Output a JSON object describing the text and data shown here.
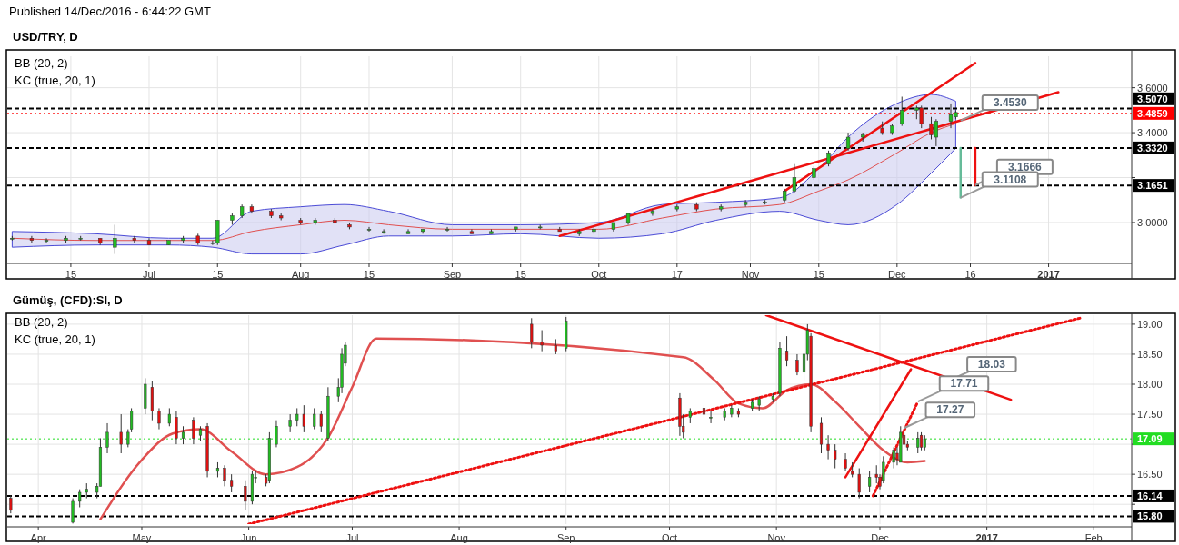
{
  "chart_data": [
    {
      "type": "candlestick",
      "title": "USD/TRY, D",
      "subtitle": "Published 14/Dec/2016 - 6:44:22 GMT",
      "annotations": [
        "BB (20, 2)",
        "KC (true, 20, 1)",
        {
          "text": "3.4530",
          "x": "2016-12-14",
          "y": 3.453
        },
        {
          "text": "3.1666",
          "x": "2016-12-17",
          "y": 3.1666
        },
        {
          "text": "3.1108",
          "x": "2016-12-14",
          "y": 3.1108
        }
      ],
      "x": [
        "2016-06-03",
        "2016-06-07",
        "2016-06-10",
        "2016-06-14",
        "2016-06-17",
        "2016-06-21",
        "2016-06-24",
        "2016-06-28",
        "2016-07-01",
        "2016-07-05",
        "2016-07-08",
        "2016-07-11",
        "2016-07-14",
        "2016-07-15",
        "2016-07-18",
        "2016-07-20",
        "2016-07-22",
        "2016-07-26",
        "2016-07-28",
        "2016-08-01",
        "2016-08-04",
        "2016-08-08",
        "2016-08-11",
        "2016-08-15",
        "2016-08-18",
        "2016-08-23",
        "2016-08-26",
        "2016-08-31",
        "2016-09-05",
        "2016-09-09",
        "2016-09-14",
        "2016-09-19",
        "2016-09-23",
        "2016-09-27",
        "2016-09-30",
        "2016-10-04",
        "2016-10-07",
        "2016-10-12",
        "2016-10-17",
        "2016-10-21",
        "2016-10-26",
        "2016-10-31",
        "2016-11-04",
        "2016-11-08",
        "2016-11-10",
        "2016-11-14",
        "2016-11-17",
        "2016-11-21",
        "2016-11-24",
        "2016-11-28",
        "2016-11-30",
        "2016-12-02",
        "2016-12-05",
        "2016-12-06",
        "2016-12-08",
        "2016-12-09",
        "2016-12-12",
        "2016-12-13"
      ],
      "ohlc": [
        [
          2.93,
          2.94,
          2.92,
          2.93
        ],
        [
          2.93,
          2.94,
          2.91,
          2.92
        ],
        [
          2.92,
          2.93,
          2.91,
          2.92
        ],
        [
          2.92,
          2.94,
          2.91,
          2.93
        ],
        [
          2.93,
          2.94,
          2.92,
          2.93
        ],
        [
          2.93,
          2.93,
          2.9,
          2.91
        ],
        [
          2.89,
          2.99,
          2.86,
          2.93
        ],
        [
          2.93,
          2.94,
          2.91,
          2.92
        ],
        [
          2.92,
          2.93,
          2.9,
          2.9
        ],
        [
          2.9,
          2.92,
          2.9,
          2.92
        ],
        [
          2.92,
          2.94,
          2.91,
          2.93
        ],
        [
          2.94,
          2.95,
          2.9,
          2.91
        ],
        [
          2.91,
          2.92,
          2.9,
          2.91
        ],
        [
          2.91,
          3.01,
          2.9,
          3.01
        ],
        [
          3.01,
          3.04,
          2.99,
          3.03
        ],
        [
          3.03,
          3.08,
          3.02,
          3.07
        ],
        [
          3.07,
          3.08,
          3.04,
          3.05
        ],
        [
          3.05,
          3.06,
          3.02,
          3.03
        ],
        [
          3.03,
          3.04,
          3.01,
          3.02
        ],
        [
          3.01,
          3.02,
          2.99,
          3.0
        ],
        [
          3.0,
          3.02,
          2.99,
          3.01
        ],
        [
          3.01,
          3.02,
          3.0,
          3.0
        ],
        [
          2.99,
          3.0,
          2.97,
          2.98
        ],
        [
          2.97,
          2.98,
          2.96,
          2.97
        ],
        [
          2.96,
          2.97,
          2.95,
          2.96
        ],
        [
          2.95,
          2.97,
          2.95,
          2.96
        ],
        [
          2.96,
          2.97,
          2.95,
          2.97
        ],
        [
          2.97,
          2.98,
          2.96,
          2.97
        ],
        [
          2.96,
          2.97,
          2.95,
          2.95
        ],
        [
          2.95,
          2.97,
          2.95,
          2.96
        ],
        [
          2.97,
          2.98,
          2.96,
          2.98
        ],
        [
          2.98,
          2.99,
          2.97,
          2.98
        ],
        [
          2.97,
          2.98,
          2.96,
          2.96
        ],
        [
          2.95,
          2.97,
          2.94,
          2.96
        ],
        [
          2.96,
          2.98,
          2.95,
          2.97
        ],
        [
          2.97,
          3.0,
          2.96,
          3.0
        ],
        [
          3.0,
          3.04,
          2.99,
          3.04
        ],
        [
          3.04,
          3.06,
          3.03,
          3.05
        ],
        [
          3.06,
          3.08,
          3.05,
          3.07
        ],
        [
          3.08,
          3.09,
          3.05,
          3.06
        ],
        [
          3.06,
          3.08,
          3.05,
          3.07
        ],
        [
          3.08,
          3.1,
          3.07,
          3.09
        ],
        [
          3.09,
          3.1,
          3.08,
          3.09
        ],
        [
          3.1,
          3.15,
          3.09,
          3.14
        ],
        [
          3.14,
          3.26,
          3.13,
          3.2
        ],
        [
          3.2,
          3.25,
          3.19,
          3.24
        ],
        [
          3.26,
          3.32,
          3.25,
          3.31
        ],
        [
          3.33,
          3.4,
          3.32,
          3.38
        ],
        [
          3.38,
          3.4,
          3.36,
          3.39
        ],
        [
          3.42,
          3.45,
          3.39,
          3.4
        ],
        [
          3.4,
          3.44,
          3.39,
          3.43
        ],
        [
          3.44,
          3.56,
          3.43,
          3.5
        ],
        [
          3.5,
          3.52,
          3.46,
          3.51
        ],
        [
          3.51,
          3.52,
          3.42,
          3.44
        ],
        [
          3.44,
          3.47,
          3.37,
          3.39
        ],
        [
          3.38,
          3.46,
          3.34,
          3.45
        ],
        [
          3.45,
          3.53,
          3.42,
          3.48
        ],
        [
          3.47,
          3.5,
          3.46,
          3.49
        ]
      ],
      "series": [
        {
          "type": "line",
          "color": "#e05050",
          "x": [
            "2016-06-03",
            "2016-06-20",
            "2016-07-05",
            "2016-07-14",
            "2016-07-22",
            "2016-08-01",
            "2016-08-10",
            "2016-08-19",
            "2016-09-01",
            "2016-09-15",
            "2016-10-01",
            "2016-10-14",
            "2016-10-25",
            "2016-11-07",
            "2016-11-15",
            "2016-11-21",
            "2016-12-01",
            "2016-12-08",
            "2016-12-13"
          ],
          "values": [
            2.93,
            2.92,
            2.92,
            2.92,
            2.96,
            2.99,
            3.01,
            2.99,
            2.97,
            2.97,
            2.97,
            3.02,
            3.06,
            3.08,
            3.14,
            3.19,
            3.31,
            3.4,
            3.44
          ],
          "lower": [
            2.89,
            2.9,
            2.9,
            2.89,
            2.86,
            2.86,
            2.9,
            2.94,
            2.94,
            2.95,
            2.93,
            2.95,
            3.01,
            3.05,
            3.01,
            2.99,
            3.08,
            3.22,
            3.33
          ],
          "upper": [
            2.96,
            2.95,
            2.93,
            2.93,
            3.05,
            3.07,
            3.08,
            3.05,
            2.99,
            2.99,
            3.0,
            3.08,
            3.09,
            3.11,
            3.24,
            3.38,
            3.53,
            3.57,
            3.54
          ]
        },
        {
          "type": "line",
          "color": "#ee1111",
          "x": [
            "2016-09-23",
            "2017-01-03"
          ],
          "values": [
            2.94,
            3.58
          ]
        },
        {
          "type": "line",
          "color": "#ee1111",
          "x": [
            "2016-11-08",
            "2016-12-17"
          ],
          "values": [
            3.14,
            3.71
          ]
        },
        {
          "type": "line",
          "color": "#ee1111",
          "x": [
            "2016-12-17",
            "2016-12-17"
          ],
          "values": [
            3.332,
            3.1666
          ]
        },
        {
          "type": "line",
          "color": "#66bb99",
          "x": [
            "2016-12-14",
            "2016-12-14"
          ],
          "values": [
            3.332,
            3.1108
          ]
        }
      ],
      "xlim": [
        "2016-06-02",
        "2017-01-18"
      ],
      "xticks": [
        {
          "value": "2016-06-15",
          "label": "15"
        },
        {
          "value": "2016-07-01",
          "label": "Jul"
        },
        {
          "value": "2016-07-15",
          "label": "15"
        },
        {
          "value": "2016-08-01",
          "label": "Aug"
        },
        {
          "value": "2016-08-15",
          "label": "15"
        },
        {
          "value": "2016-09-01",
          "label": "Sep"
        },
        {
          "value": "2016-09-15",
          "label": "15"
        },
        {
          "value": "2016-10-01",
          "label": "Oct"
        },
        {
          "value": "2016-10-17",
          "label": "17"
        },
        {
          "value": "2016-11-01",
          "label": "Nov"
        },
        {
          "value": "2016-11-15",
          "label": "15"
        },
        {
          "value": "2016-12-01",
          "label": "Dec"
        },
        {
          "value": "2016-12-16",
          "label": "16"
        },
        {
          "value": "2017-01-01",
          "label": "2017"
        }
      ],
      "ylim": [
        2.83,
        3.74
      ],
      "yticks": [
        {
          "value": 3,
          "label": "3.0000"
        },
        {
          "value": 3.2,
          "label": null
        },
        {
          "value": 3.4,
          "label": "3.4000"
        },
        {
          "value": 3.6,
          "label": "3.6000"
        }
      ],
      "grid": true,
      "ref_lines": [
        {
          "axis": "y",
          "value": 3.507,
          "label": "3.5070",
          "color": "#000000",
          "line_style": "dashed"
        },
        {
          "axis": "y",
          "value": 3.4859,
          "label": "3.4859",
          "color": "#ff0000",
          "line_style": "dotted"
        },
        {
          "axis": "y",
          "value": 3.332,
          "label": "3.3320",
          "color": "#000000",
          "line_style": "dashed"
        },
        {
          "axis": "y",
          "value": 3.1651,
          "label": "3.1651",
          "color": "#000000",
          "line_style": "dashed"
        }
      ]
    },
    {
      "type": "candlestick",
      "title": "Gümüş, (CFD):SI, D",
      "annotations": [
        "BB (20, 2)",
        "KC (true, 20, 1)",
        {
          "text": "18.03",
          "x": "2016-12-20",
          "y": 18.03
        },
        {
          "text": "17.71",
          "x": "2016-12-12",
          "y": 17.71
        },
        {
          "text": "17.27",
          "x": "2016-12-08",
          "y": 17.27
        }
      ],
      "x": [
        "2016-03-24",
        "2016-04-11",
        "2016-04-13",
        "2016-04-15",
        "2016-04-18",
        "2016-04-19",
        "2016-04-21",
        "2016-04-25",
        "2016-04-27",
        "2016-04-28",
        "2016-05-02",
        "2016-05-04",
        "2016-05-06",
        "2016-05-09",
        "2016-05-11",
        "2016-05-13",
        "2016-05-16",
        "2016-05-18",
        "2016-05-20",
        "2016-05-23",
        "2016-05-25",
        "2016-05-27",
        "2016-05-31",
        "2016-06-02",
        "2016-06-03",
        "2016-06-06",
        "2016-06-07",
        "2016-06-09",
        "2016-06-13",
        "2016-06-15",
        "2016-06-17",
        "2016-06-20",
        "2016-06-22",
        "2016-06-24",
        "2016-06-27",
        "2016-06-28",
        "2016-06-29",
        "2016-08-22",
        "2016-08-25",
        "2016-08-29",
        "2016-09-01",
        "2016-10-04",
        "2016-10-05",
        "2016-10-07",
        "2016-10-11",
        "2016-10-13",
        "2016-10-17",
        "2016-10-19",
        "2016-10-21",
        "2016-10-25",
        "2016-10-27",
        "2016-10-31",
        "2016-11-02",
        "2016-11-04",
        "2016-11-07",
        "2016-11-09",
        "2016-11-10",
        "2016-11-11",
        "2016-11-14",
        "2016-11-16",
        "2016-11-18",
        "2016-11-21",
        "2016-11-23",
        "2016-11-25",
        "2016-11-28",
        "2016-11-30",
        "2016-12-01",
        "2016-12-02",
        "2016-12-05",
        "2016-12-06",
        "2016-12-07",
        "2016-12-08",
        "2016-12-09",
        "2016-12-12",
        "2016-12-13",
        "2016-12-14"
      ],
      "ohlc": [
        [
          16.1,
          16.15,
          15.85,
          15.9
        ],
        [
          15.7,
          16.1,
          15.68,
          16.05
        ],
        [
          16.05,
          16.25,
          15.95,
          16.2
        ],
        [
          16.2,
          16.35,
          16.1,
          16.25
        ],
        [
          16.2,
          16.35,
          16.1,
          16.3
        ],
        [
          16.3,
          17.1,
          16.3,
          16.95
        ],
        [
          16.95,
          17.35,
          16.85,
          17.2
        ],
        [
          17.2,
          17.5,
          16.85,
          17.0
        ],
        [
          17.0,
          17.25,
          16.95,
          17.2
        ],
        [
          17.25,
          17.6,
          17.2,
          17.55
        ],
        [
          17.6,
          18.1,
          17.5,
          18.0
        ],
        [
          17.95,
          18.05,
          17.4,
          17.55
        ],
        [
          17.55,
          17.6,
          17.25,
          17.35
        ],
        [
          17.35,
          17.6,
          17.3,
          17.5
        ],
        [
          17.45,
          17.55,
          17.0,
          17.1
        ],
        [
          17.1,
          17.3,
          17.0,
          17.2
        ],
        [
          17.4,
          17.45,
          17.0,
          17.1
        ],
        [
          17.15,
          17.3,
          17.05,
          17.25
        ],
        [
          17.3,
          17.35,
          16.45,
          16.55
        ],
        [
          16.55,
          16.7,
          16.45,
          16.6
        ],
        [
          16.6,
          16.65,
          16.3,
          16.4
        ],
        [
          16.4,
          16.5,
          16.2,
          16.3
        ],
        [
          16.3,
          16.4,
          15.9,
          16.05
        ],
        [
          16.05,
          16.55,
          16.0,
          16.5
        ],
        [
          16.45,
          16.55,
          16.35,
          16.45
        ],
        [
          16.45,
          16.5,
          16.3,
          16.35
        ],
        [
          16.4,
          17.2,
          16.35,
          17.1
        ],
        [
          17.0,
          17.4,
          16.95,
          17.3
        ],
        [
          17.3,
          17.5,
          17.2,
          17.4
        ],
        [
          17.4,
          17.6,
          17.3,
          17.5
        ],
        [
          17.5,
          17.65,
          17.2,
          17.3
        ],
        [
          17.3,
          17.6,
          17.25,
          17.5
        ],
        [
          17.5,
          17.55,
          17.2,
          17.3
        ],
        [
          17.1,
          17.95,
          17.05,
          17.8
        ],
        [
          17.8,
          18.1,
          17.7,
          17.95
        ],
        [
          17.95,
          18.6,
          17.85,
          18.5
        ],
        [
          18.35,
          18.7,
          18.3,
          18.65
        ],
        [
          19.0,
          19.1,
          18.6,
          18.7
        ],
        [
          18.7,
          18.9,
          18.55,
          18.65
        ],
        [
          18.65,
          18.75,
          18.5,
          18.55
        ],
        [
          18.6,
          19.12,
          18.55,
          19.05
        ],
        [
          17.77,
          17.85,
          17.14,
          17.3
        ],
        [
          17.3,
          17.5,
          17.1,
          17.2
        ],
        [
          17.45,
          17.6,
          17.35,
          17.55
        ],
        [
          17.6,
          17.65,
          17.45,
          17.5
        ],
        [
          17.45,
          17.55,
          17.35,
          17.45
        ],
        [
          17.45,
          17.6,
          17.4,
          17.55
        ],
        [
          17.5,
          17.65,
          17.45,
          17.6
        ],
        [
          17.55,
          17.6,
          17.45,
          17.5
        ],
        [
          17.6,
          17.75,
          17.55,
          17.7
        ],
        [
          17.65,
          17.8,
          17.55,
          17.75
        ],
        [
          17.75,
          17.85,
          17.7,
          17.8
        ],
        [
          17.85,
          18.7,
          17.8,
          18.6
        ],
        [
          18.55,
          18.8,
          18.3,
          18.4
        ],
        [
          18.4,
          18.5,
          18.15,
          18.2
        ],
        [
          18.2,
          18.95,
          18.05,
          18.5
        ],
        [
          18.5,
          19.0,
          18.4,
          18.9
        ],
        [
          18.8,
          18.85,
          17.2,
          17.3
        ],
        [
          17.35,
          17.45,
          16.85,
          17.0
        ],
        [
          17.0,
          17.15,
          16.75,
          16.9
        ],
        [
          16.9,
          17.0,
          16.6,
          16.75
        ],
        [
          16.75,
          16.85,
          16.55,
          16.6
        ],
        [
          16.55,
          16.7,
          16.45,
          16.5
        ],
        [
          16.5,
          16.6,
          16.1,
          16.2
        ],
        [
          16.3,
          16.55,
          16.2,
          16.45
        ],
        [
          16.5,
          16.65,
          16.35,
          16.45
        ],
        [
          16.45,
          16.5,
          16.25,
          16.3
        ],
        [
          16.4,
          16.8,
          16.35,
          16.7
        ],
        [
          16.7,
          16.95,
          16.6,
          16.9
        ],
        [
          16.85,
          16.95,
          16.65,
          16.75
        ],
        [
          16.7,
          17.3,
          16.7,
          17.2
        ],
        [
          17.15,
          17.2,
          16.95,
          17.0
        ],
        [
          17.0,
          17.05,
          16.9,
          16.95
        ],
        [
          16.95,
          17.2,
          16.85,
          17.1
        ],
        [
          17.15,
          17.2,
          16.9,
          16.95
        ],
        [
          16.95,
          17.15,
          16.9,
          17.09
        ]
      ],
      "series": [
        {
          "type": "line",
          "color": "#e05050",
          "x": [
            "2016-04-19",
            "2016-05-01",
            "2016-05-10",
            "2016-05-18",
            "2016-05-27",
            "2016-06-06",
            "2016-06-15",
            "2016-06-24",
            "2016-07-01",
            "2016-07-08",
            "2016-10-05",
            "2016-10-14",
            "2016-10-21",
            "2016-10-28",
            "2016-11-04",
            "2016-11-11",
            "2016-11-18",
            "2016-11-25",
            "2016-12-02",
            "2016-12-09",
            "2016-12-14"
          ],
          "values": [
            15.75,
            16.74,
            17.18,
            17.25,
            16.88,
            16.5,
            16.62,
            17.11,
            17.95,
            18.76,
            18.45,
            18.07,
            17.68,
            17.6,
            17.9,
            18.0,
            17.71,
            17.3,
            16.9,
            16.7,
            16.72
          ]
        },
        {
          "type": "line",
          "color": "#ee1111",
          "line_style": "dotted",
          "x": [
            "2016-06-01",
            "2017-01-28"
          ],
          "values": [
            15.67,
            19.1
          ]
        },
        {
          "type": "line",
          "color": "#ee1111",
          "x": [
            "2016-10-29",
            "2017-01-08"
          ],
          "values": [
            19.15,
            17.74
          ]
        },
        {
          "type": "line",
          "color": "#ee1111",
          "x": [
            "2016-11-21",
            "2016-12-10"
          ],
          "values": [
            16.45,
            18.25
          ]
        },
        {
          "type": "line",
          "color": "#ee1111",
          "line_style": "dotted",
          "x": [
            "2016-11-29",
            "2016-12-12"
          ],
          "values": [
            16.14,
            17.71
          ]
        }
      ],
      "xlim": [
        "2016-03-23",
        "2017-02-12"
      ],
      "xticks": [
        {
          "value": "2016-04-01",
          "label": "Apr"
        },
        {
          "value": "2016-05-01",
          "label": "May"
        },
        {
          "value": "2016-06-01",
          "label": "Jun"
        },
        {
          "value": "2016-07-01",
          "label": "Jul"
        },
        {
          "value": "2016-08-01",
          "label": "Aug"
        },
        {
          "value": "2016-09-01",
          "label": "Sep"
        },
        {
          "value": "2016-10-01",
          "label": "Oct"
        },
        {
          "value": "2016-11-01",
          "label": "Nov"
        },
        {
          "value": "2016-12-01",
          "label": "Dec"
        },
        {
          "value": "2017-01-01",
          "label": "2017"
        },
        {
          "value": "2017-02-01",
          "label": "Feb"
        }
      ],
      "ylim": [
        15.67,
        19.15
      ],
      "yticks": [
        {
          "value": 16,
          "label": null
        },
        {
          "value": 16.5,
          "label": "16.50"
        },
        {
          "value": 17,
          "label": null
        },
        {
          "value": 17.5,
          "label": "17.50"
        },
        {
          "value": 18,
          "label": "18.00"
        },
        {
          "value": 18.5,
          "label": "18.50"
        },
        {
          "value": 19,
          "label": "19.00"
        }
      ],
      "grid": true,
      "ref_lines": [
        {
          "axis": "y",
          "value": 17.09,
          "label": "17.09",
          "color": "#22dd22",
          "line_style": "dotted"
        },
        {
          "axis": "y",
          "value": 16.14,
          "label": "16.14",
          "color": "#000000",
          "line_style": "dashed"
        },
        {
          "axis": "y",
          "value": 15.8,
          "label": "15.80",
          "color": "#000000",
          "line_style": "dashed"
        }
      ]
    }
  ]
}
